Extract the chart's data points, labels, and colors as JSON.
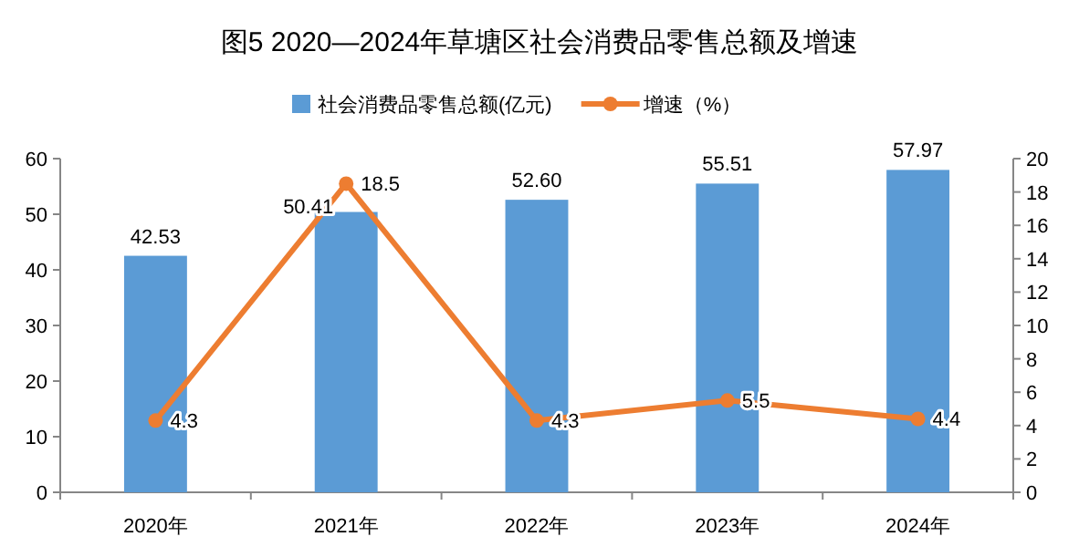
{
  "chart_data": {
    "type": "bar",
    "title": "图5  2020—2024年草塘区社会消费品零售总额及增速",
    "categories": [
      "2020年",
      "2021年",
      "2022年",
      "2023年",
      "2024年"
    ],
    "series": [
      {
        "name": "社会消费品零售总额(亿元)",
        "color": "#5b9bd5",
        "values": [
          42.53,
          50.41,
          52.6,
          55.51,
          57.97
        ],
        "value_labels": [
          "42.53",
          "50.41",
          "52.60",
          "55.51",
          "57.97"
        ]
      },
      {
        "name": "增速（%）",
        "type": "line",
        "axis": "y2",
        "color": "#ed7d31",
        "values": [
          4.3,
          18.5,
          4.3,
          5.5,
          4.4
        ],
        "value_labels": [
          "4.3",
          "18.5",
          "4.3",
          "5.5",
          "4.4"
        ]
      }
    ],
    "ylim": [
      0,
      60
    ],
    "yticks": [
      0,
      10,
      20,
      30,
      40,
      50,
      60
    ],
    "y2lim": [
      0,
      20
    ],
    "y2ticks": [
      0,
      2,
      4,
      6,
      8,
      10,
      12,
      14,
      16,
      18,
      20
    ],
    "legend": "top",
    "marker": "circle",
    "line_style": "solid",
    "grid": false
  }
}
